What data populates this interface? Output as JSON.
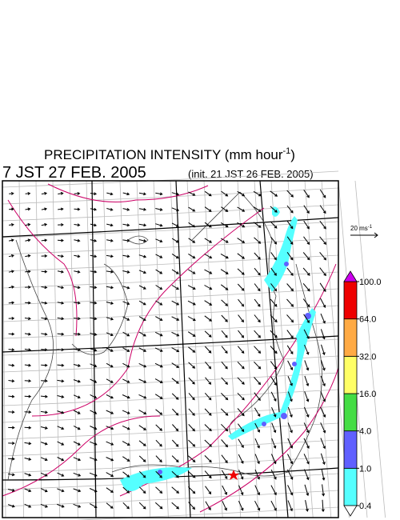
{
  "title": {
    "text": "PRECIPITATION INTENSITY (mm hour",
    "superscript": "-1",
    "close": ")"
  },
  "valid_time": "7 JST 27 FEB. 2005",
  "init_time": "(init. 21 JST 26 FEB. 2005)",
  "wind_scale": {
    "text": "20 ms",
    "superscript": "-1"
  },
  "colorbar": {
    "levels": [
      {
        "value": 0.4,
        "label": "0.4"
      },
      {
        "value": 1,
        "label": "1.0"
      },
      {
        "value": 4,
        "label": "4.0"
      },
      {
        "value": 16,
        "label": "16.0"
      },
      {
        "value": 32,
        "label": "32.0"
      },
      {
        "value": 64,
        "label": "64.0"
      },
      {
        "value": 100,
        "label": "100.0"
      }
    ],
    "colors": [
      "#55ffff",
      "#6060ff",
      "#44dd44",
      "#ffff66",
      "#ffaa44",
      "#ee0000"
    ],
    "under_color": "#ffffff",
    "over_color": "#cc00ee"
  }
}
